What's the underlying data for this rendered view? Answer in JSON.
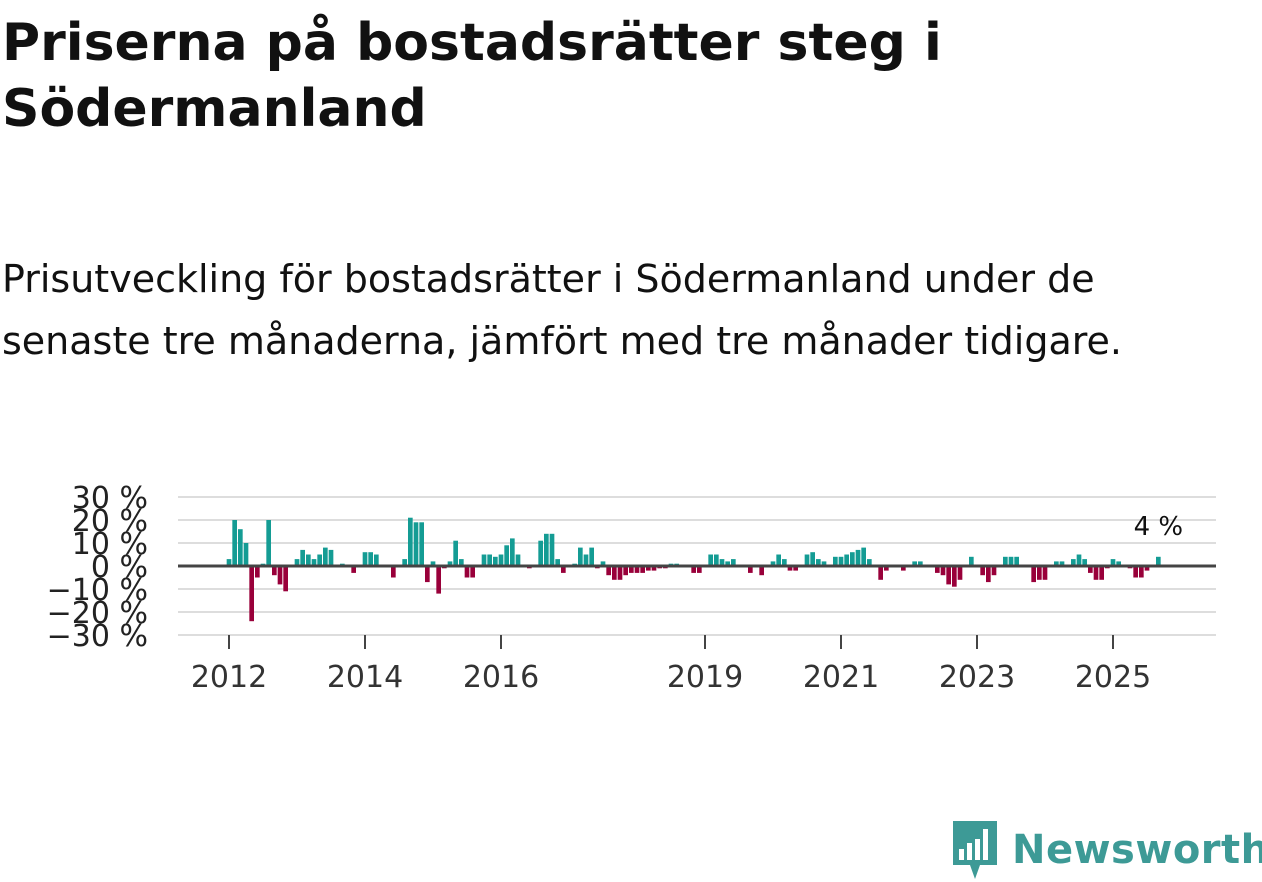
{
  "title": "Priserna på bostadsrätter steg i Södermanland",
  "subtitle": "Prisutveckling för bostadsrätter i Södermanland under de senaste tre månaderna, jämfört med tre månader tidigare.",
  "brand": {
    "name": "Newsworthy",
    "logo_icon": "newsworthy-bar-chart-speech-bubble-icon"
  },
  "colors": {
    "positive": "#149c94",
    "negative": "#99003a",
    "grid": "#dddddd",
    "zero_line": "#444444",
    "brand": "#3d9a96"
  },
  "chart_data": {
    "type": "bar",
    "title": "Priserna på bostadsrätter steg i Södermanland",
    "xlabel": "",
    "ylabel": "",
    "ylim": [
      -30,
      30
    ],
    "y_ticks": [
      30,
      20,
      10,
      0,
      -10,
      -20,
      -30
    ],
    "y_tick_labels": [
      "30 %",
      "20 %",
      "10 %",
      "0 %",
      "−10 %",
      "−20 %",
      "−30 %"
    ],
    "x_tick_years": [
      2012,
      2014,
      2016,
      2019,
      2021,
      2023,
      2025
    ],
    "x_tick_labels": [
      "2012",
      "2014",
      "2016",
      "2019",
      "2021",
      "2023",
      "2025"
    ],
    "start": "2012-01",
    "last_value_label": "4 %",
    "values": [
      3,
      20,
      16,
      10,
      -24,
      -5,
      1,
      20,
      -4,
      -8,
      -11,
      0,
      3,
      7,
      5,
      3,
      5,
      8,
      7,
      0,
      1,
      0,
      -3,
      0,
      6,
      6,
      5,
      0,
      0,
      -5,
      0,
      3,
      21,
      19,
      19,
      -7,
      2,
      -12,
      -1,
      2,
      11,
      3,
      -5,
      -5,
      0,
      5,
      5,
      4,
      5,
      9,
      12,
      5,
      0,
      -1,
      0,
      11,
      14,
      14,
      3,
      -3,
      0,
      1,
      8,
      5,
      8,
      -1,
      2,
      -4,
      -6,
      -6,
      -4,
      -3,
      -3,
      -3,
      -2,
      -2,
      -1,
      -1,
      1,
      1,
      0,
      0,
      -3,
      -3,
      0,
      5,
      5,
      3,
      2,
      3,
      0,
      0,
      -3,
      0,
      -4,
      0,
      2,
      5,
      3,
      -2,
      -2,
      0,
      5,
      6,
      3,
      2,
      0,
      4,
      4,
      5,
      6,
      7,
      8,
      3,
      0,
      -6,
      -2,
      0,
      0,
      -2,
      0,
      2,
      2,
      0,
      0,
      -3,
      -4,
      -8,
      -9,
      -6,
      0,
      4,
      0,
      -4,
      -7,
      -4,
      0,
      4,
      4,
      4,
      0,
      0,
      -7,
      -6,
      -6,
      0,
      2,
      2,
      0,
      3,
      5,
      3,
      -3,
      -6,
      -6,
      -1,
      3,
      2,
      0,
      -1,
      -5,
      -5,
      -2,
      0,
      4
    ]
  }
}
